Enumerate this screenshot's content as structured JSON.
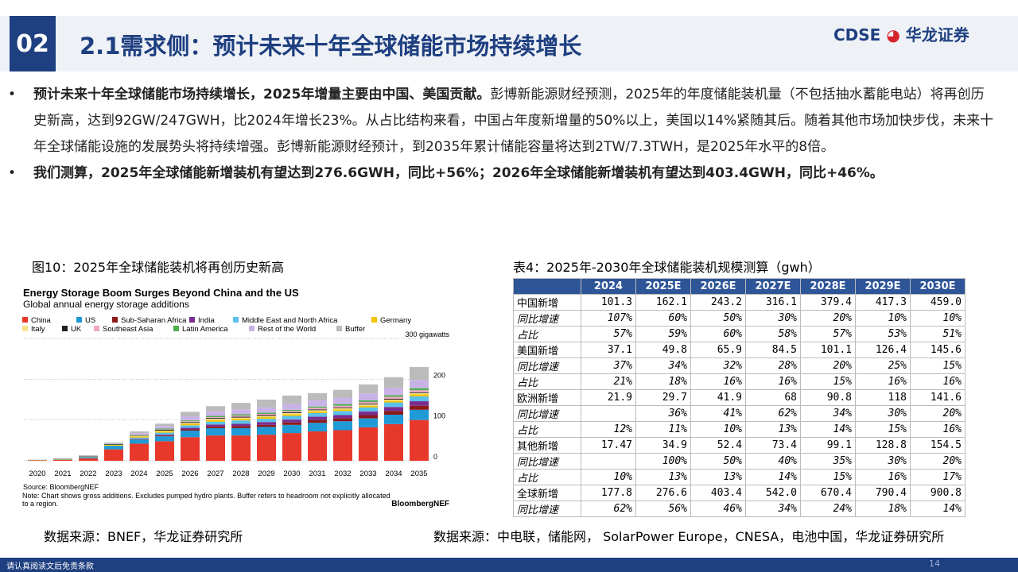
{
  "header": {
    "section": "02",
    "title": "2.1需求侧：预计未来十年全球储能市场持续增长",
    "logo_latin": "CDSE",
    "logo_cn": "华龙证券"
  },
  "bullets": [
    {
      "bold": "预计未来十年全球储能市场持续增长，2025年增量主要由中国、美国贡献。",
      "text": "彭博新能源财经预测，2025年的年度储能装机量（不包括抽水蓄能电站）将再创历史新高，达到92GW/247GWH，比2024年增长23%。从占比结构来看，中国占年度新增量的50%以上，美国以14%紧随其后。随着其他市场加快步伐，未来十年全球储能设施的发展势头将持续增强。彭博新能源财经预计，到2035年累计储能容量将达到2TW/7.3TWH，是2025年水平的8倍。"
    },
    {
      "bold": "我们测算，2025年全球储能新增装机有望达到276.6GWH，同比+56%；2026年全球储能新增装机有望达到403.4GWH，同比+46%。"
    }
  ],
  "figure": {
    "caption": "图10：2025年全球储能装机将再创历史新高",
    "source_line": "数据来源：BNEF，华龙证券研究所",
    "chart_data": {
      "type": "bar",
      "stacked": true,
      "title": "Energy Storage Boom Surges Beyond China and the US",
      "subtitle": "Global annual energy storage additions",
      "categories": [
        "2020",
        "2021",
        "2022",
        "2023",
        "2024",
        "2025",
        "2026",
        "2027",
        "2028",
        "2029",
        "2030",
        "2031",
        "2032",
        "2033",
        "2034",
        "2035"
      ],
      "series": [
        {
          "name": "China",
          "color": "#e8382c",
          "values": [
            1,
            2,
            6,
            28,
            42,
            48,
            58,
            62,
            62,
            64,
            68,
            72,
            75,
            82,
            90,
            100
          ]
        },
        {
          "name": "US",
          "color": "#1f9ad6",
          "values": [
            0.5,
            1,
            3,
            8,
            10,
            12,
            16,
            18,
            18,
            19,
            20,
            21,
            22,
            22,
            23,
            25
          ]
        },
        {
          "name": "Sub-Saharan Africa",
          "color": "#8b1a1a",
          "values": [
            0,
            0,
            0,
            0,
            1,
            2,
            3,
            4,
            5,
            5,
            6,
            7,
            7,
            8,
            9,
            10
          ]
        },
        {
          "name": "India",
          "color": "#7b2d8e",
          "values": [
            0,
            0,
            0,
            0,
            1,
            2,
            4,
            5,
            6,
            7,
            7,
            8,
            8,
            9,
            10,
            11
          ]
        },
        {
          "name": "Middle East and North Africa",
          "color": "#5bc0eb",
          "values": [
            0,
            0,
            0,
            1,
            3,
            5,
            6,
            7,
            8,
            8,
            9,
            9,
            10,
            10,
            11,
            12
          ]
        },
        {
          "name": "Germany",
          "color": "#f5c400",
          "values": [
            0.5,
            1,
            1,
            2,
            3,
            3,
            4,
            4,
            4,
            4,
            4,
            4,
            4,
            4,
            4,
            5
          ]
        },
        {
          "name": "Italy",
          "color": "#f7e38b",
          "values": [
            0,
            0,
            0,
            0,
            1,
            2,
            2,
            3,
            3,
            3,
            3,
            3,
            3,
            3,
            3,
            3
          ]
        },
        {
          "name": "UK",
          "color": "#222222",
          "values": [
            0,
            0.5,
            1,
            1,
            1,
            2,
            2,
            2,
            2,
            2,
            2,
            2,
            2,
            2,
            2,
            2
          ]
        },
        {
          "name": "Southeast Asia",
          "color": "#f4a6c6",
          "values": [
            0,
            0,
            0,
            0,
            1,
            1,
            2,
            2,
            3,
            3,
            3,
            4,
            4,
            4,
            5,
            5
          ]
        },
        {
          "name": "Latin America",
          "color": "#4caf50",
          "values": [
            0,
            0,
            0,
            1,
            1,
            2,
            2,
            3,
            3,
            3,
            3,
            3,
            4,
            4,
            4,
            5
          ]
        },
        {
          "name": "Rest of the World",
          "color": "#c9b3e6",
          "values": [
            0.5,
            1,
            1,
            2,
            4,
            6,
            10,
            11,
            12,
            13,
            14,
            15,
            16,
            17,
            18,
            20
          ]
        },
        {
          "name": "Buffer",
          "color": "#bbbbbb",
          "values": [
            0.5,
            1,
            2,
            2,
            4,
            6,
            11,
            13,
            16,
            19,
            21,
            18,
            19,
            22,
            26,
            32
          ]
        }
      ],
      "ylim": [
        0,
        300
      ],
      "yticks": [
        0,
        100,
        200,
        {
          "value": 300,
          "label": "300 gigawatts"
        }
      ],
      "grid": true,
      "source": "Source: BloombergNEF",
      "note": "Note: Chart shows gross additions. Excludes pumped hydro plants. Buffer refers to headroom not explicitly allocated to a region.",
      "brand": "BloombergNEF"
    }
  },
  "table": {
    "caption": "表4：2025年-2030年全球储能装机规模测算（gwh）",
    "source": "数据来源：中电联，储能网， SolarPower Europe，CNESA，电池中国，华龙证券研究所",
    "header": [
      "2024",
      "2025E",
      "2026E",
      "2027E",
      "2028E",
      "2029E",
      "2030E"
    ],
    "rows": [
      [
        "中国新增",
        "101.3",
        "162.1",
        "243.2",
        "316.1",
        "379.4",
        "417.3",
        "459.0"
      ],
      [
        "同比增速",
        "107%",
        "60%",
        "50%",
        "30%",
        "20%",
        "10%",
        "10%"
      ],
      [
        "占比",
        "57%",
        "59%",
        "60%",
        "58%",
        "57%",
        "53%",
        "51%"
      ],
      [
        "美国新增",
        "37.1",
        "49.8",
        "65.9",
        "84.5",
        "101.1",
        "126.4",
        "145.6"
      ],
      [
        "同比增速",
        "37%",
        "34%",
        "32%",
        "28%",
        "20%",
        "25%",
        "15%"
      ],
      [
        "占比",
        "21%",
        "18%",
        "16%",
        "16%",
        "15%",
        "16%",
        "16%"
      ],
      [
        "欧洲新增",
        "21.9",
        "29.7",
        "41.9",
        "68",
        "90.8",
        "118",
        "141.6"
      ],
      [
        "同比增速",
        null,
        "36%",
        "41%",
        "62%",
        "34%",
        "30%",
        "20%"
      ],
      [
        "占比",
        "12%",
        "11%",
        "10%",
        "13%",
        "14%",
        "15%",
        "16%"
      ],
      [
        "其他新增",
        "17.47",
        "34.9",
        "52.4",
        "73.4",
        "99.1",
        "128.8",
        "154.5"
      ],
      [
        "同比增速",
        null,
        "100%",
        "50%",
        "40%",
        "35%",
        "30%",
        "20%"
      ],
      [
        "占比",
        "10%",
        "13%",
        "13%",
        "14%",
        "15%",
        "16%",
        "17%"
      ],
      [
        "全球新增",
        "177.8",
        "276.6",
        "403.4",
        "542.0",
        "670.4",
        "790.4",
        "900.8"
      ],
      [
        "同比增速",
        "62%",
        "56%",
        "46%",
        "34%",
        "24%",
        "18%",
        "14%"
      ]
    ]
  },
  "footer": {
    "disclaimer": "请认真阅读文后免责条款",
    "page": "14"
  }
}
